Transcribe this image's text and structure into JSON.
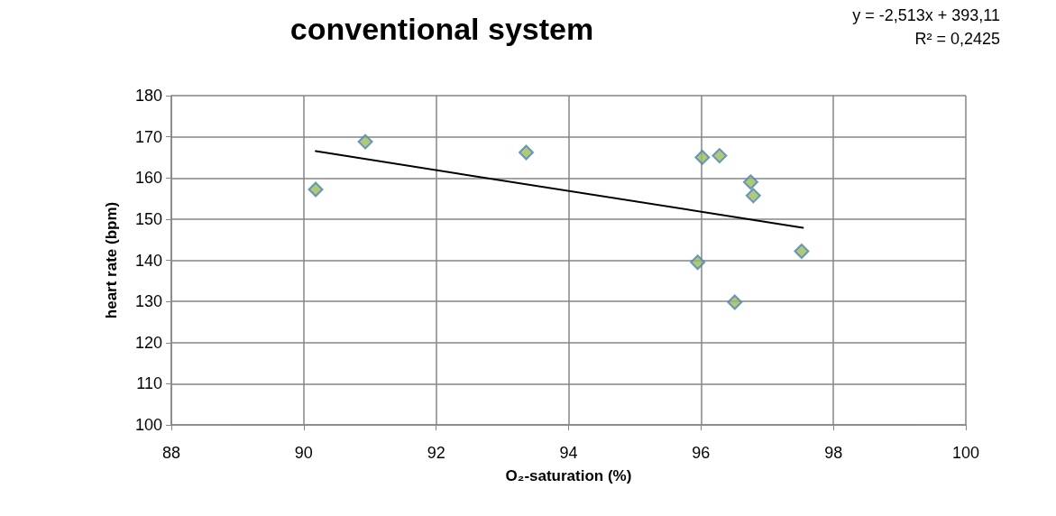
{
  "chart_data": {
    "type": "scatter",
    "title": "conventional system",
    "xlabel": "O₂-saturation (%)",
    "ylabel": "heart rate (bpm)",
    "annotations": [
      "y = -2,513x + 393,11",
      "R² = 0,2425"
    ],
    "xlim": [
      88,
      100
    ],
    "xticks": [
      88,
      90,
      92,
      94,
      96,
      98,
      100
    ],
    "ylim": [
      100,
      180
    ],
    "yticks": [
      100,
      110,
      120,
      130,
      140,
      150,
      160,
      170,
      180
    ],
    "grid": true,
    "marker": "diamond",
    "series": [
      {
        "color": "#9bbb59",
        "x": [
          90.18,
          90.93,
          93.36,
          96.02,
          96.28,
          96.75,
          96.79,
          95.95,
          96.51,
          97.52
        ],
        "values": [
          157.2,
          168.8,
          166.2,
          165.0,
          165.4,
          159.0,
          155.7,
          139.5,
          129.8,
          142.2
        ]
      },
      {
        "type": "line",
        "color": "#000000",
        "marker": "none",
        "line_style": "solid",
        "x": [
          90.18,
          97.54
        ],
        "values": [
          166.5,
          147.9
        ]
      }
    ]
  }
}
